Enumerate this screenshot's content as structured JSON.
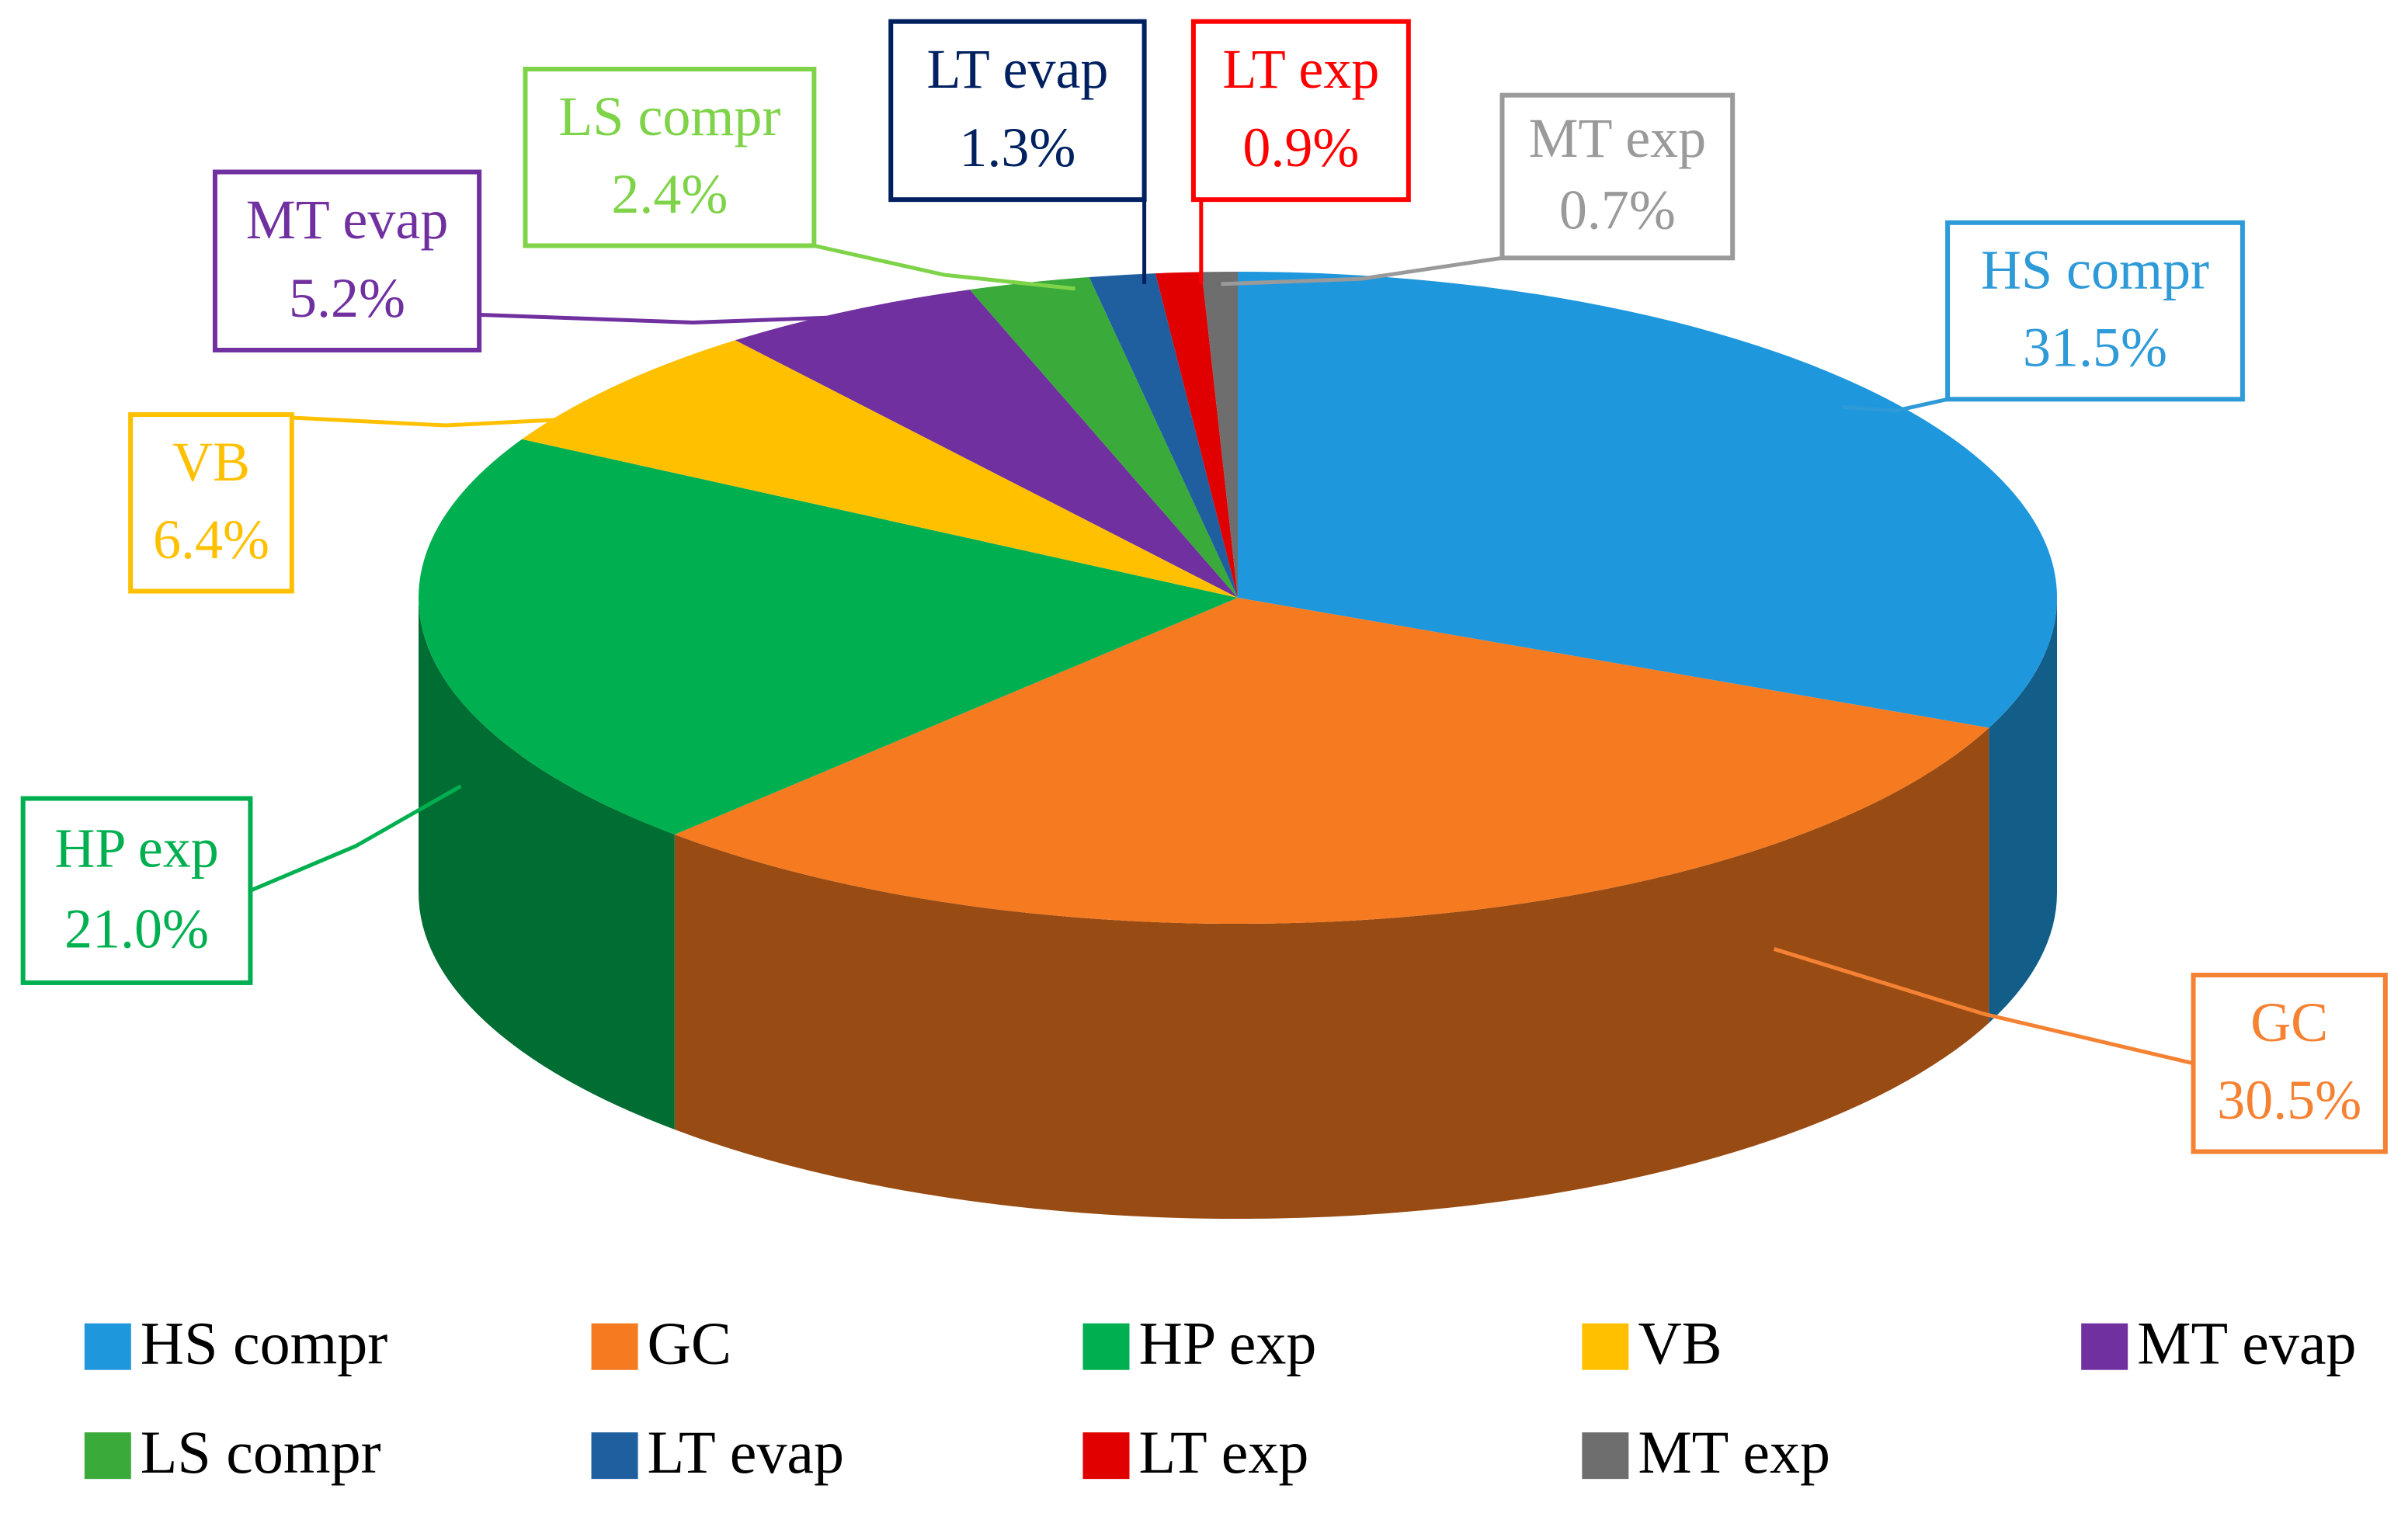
{
  "chart_data": {
    "type": "pie",
    "categories": [
      "HS compr",
      "GC",
      "HP exp",
      "VB",
      "MT evap",
      "LS compr",
      "LT evap",
      "LT exp",
      "MT exp"
    ],
    "values": [
      31.5,
      30.5,
      21.0,
      6.4,
      5.2,
      2.4,
      1.3,
      0.9,
      0.7
    ],
    "value_labels": [
      "31.5%",
      "30.5%",
      "21.0%",
      "6.4%",
      "5.2%",
      "2.4%",
      "1.3%",
      "0.9%",
      "0.7%"
    ],
    "colors": [
      "#1f97dc",
      "#f57a20",
      "#00b050",
      "#ffc000",
      "#7030a0",
      "#3aaa3a",
      "#1f5f9f",
      "#e00000",
      "#6e6e6e"
    ],
    "label_colors": [
      "#2e9ad8",
      "#f58233",
      "#00b050",
      "#ffc000",
      "#7030a0",
      "#7ed348",
      "#002060",
      "#ff0000",
      "#9a9a9a"
    ],
    "legend": "bottom"
  }
}
